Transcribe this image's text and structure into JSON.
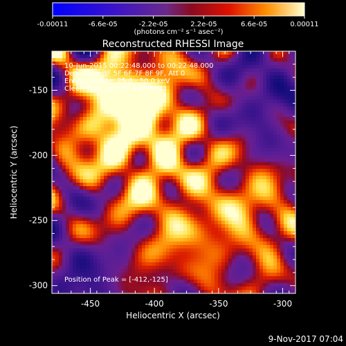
{
  "colorbar": {
    "ticks": [
      "-0.00011",
      "-6.6e-05",
      "-2.2e-05",
      "2.2e-05",
      "6.6e-05",
      "0.00011"
    ],
    "unit_label": "(photons cm⁻² s⁻¹ asec⁻²)",
    "range": [
      -0.00011,
      0.00011
    ]
  },
  "chart_data": {
    "type": "heatmap",
    "title": "Reconstructed RHESSI Image",
    "xlabel": "Heliocentric X (arcsec)",
    "ylabel": "Heliocentric Y (arcsec)",
    "xlim": [
      -480,
      -290
    ],
    "ylim": [
      -306,
      -120
    ],
    "xticks": [
      "-450",
      "-400",
      "-350",
      "-300"
    ],
    "xtick_values": [
      -450,
      -400,
      -350,
      -300
    ],
    "yticks": [
      "-150",
      "-200",
      "-250",
      "-300"
    ],
    "ytick_values": [
      -150,
      -200,
      -250,
      -300
    ],
    "annotations": [
      "10-Jun-2015 00:22:48.000 to 00:22:48.000",
      "Detectors: 3F 5F 6F 7F 8F 9F, Att 0",
      "Energy Range: 25.0 - 50.0 keV",
      "Clean    Total counts: 8.89E+03"
    ],
    "peak_label": "Position of Peak = [-412,-125]",
    "peak_position": [
      -412,
      -125
    ]
  },
  "footer": {
    "timestamp": "9-Nov-2017 07:04"
  }
}
